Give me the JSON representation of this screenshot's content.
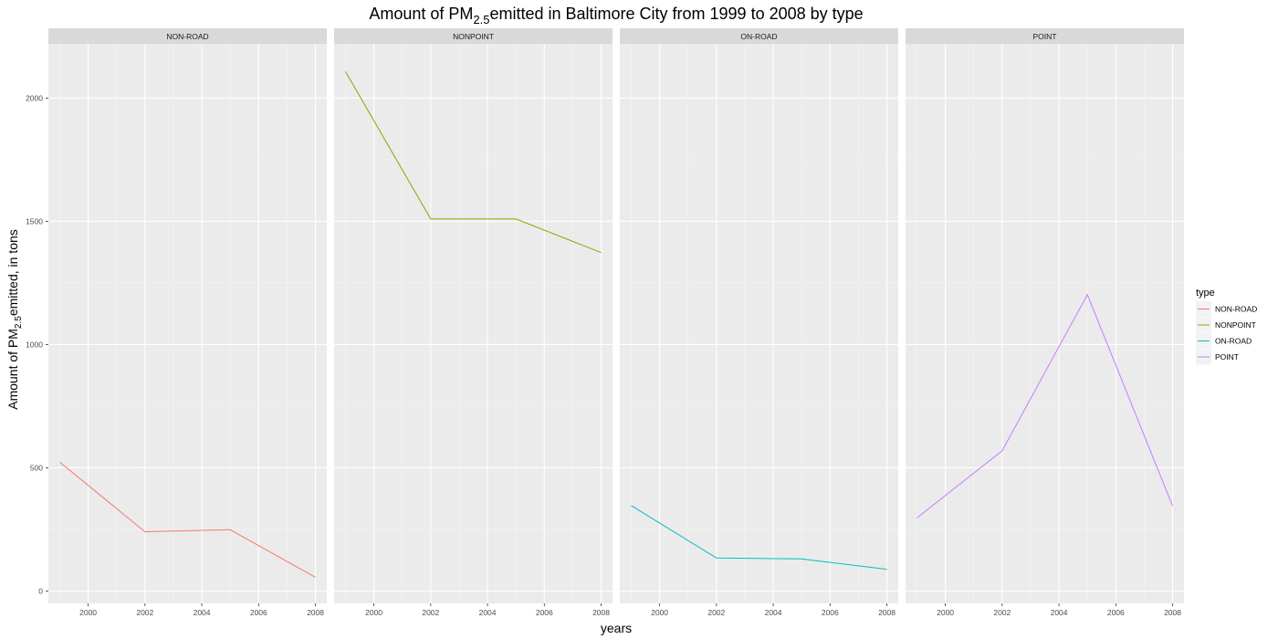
{
  "chart_data": {
    "type": "line",
    "title": {
      "pre": "Amount of PM",
      "sub": "2.5",
      "post": "emitted in Baltimore City from 1999 to 2008 by type"
    },
    "xlabel": "years",
    "ylabel": {
      "pre": "Amount of PM",
      "sub": "2.5",
      "post": "emitted, in tons"
    },
    "x": [
      1999,
      2002,
      2005,
      2008
    ],
    "xlim": [
      1998.6,
      2008.4
    ],
    "x_ticks": [
      2000,
      2002,
      2004,
      2006,
      2008
    ],
    "x_minor": [
      1999,
      2001,
      2003,
      2005,
      2007
    ],
    "ylim": [
      -50,
      2220
    ],
    "y_ticks": [
      0,
      500,
      1000,
      1500,
      2000
    ],
    "y_minor": [
      250,
      750,
      1250,
      1750
    ],
    "grid": true,
    "legend_title": "type",
    "legend_position": "right",
    "series": [
      {
        "name": "NON-ROAD",
        "color": "#F8766D",
        "values": [
          522.94,
          240.85,
          248.93,
          55.82
        ]
      },
      {
        "name": "NONPOINT",
        "color": "#7CAE00",
        "values": [
          2107.63,
          1509.5,
          1509.5,
          1373.21
        ]
      },
      {
        "name": "ON-ROAD",
        "color": "#00BFC4",
        "values": [
          346.82,
          134.31,
          130.43,
          88.28
        ]
      },
      {
        "name": "POINT",
        "color": "#C77CFF",
        "values": [
          296.8,
          569.26,
          1202.49,
          344.98
        ]
      }
    ]
  }
}
